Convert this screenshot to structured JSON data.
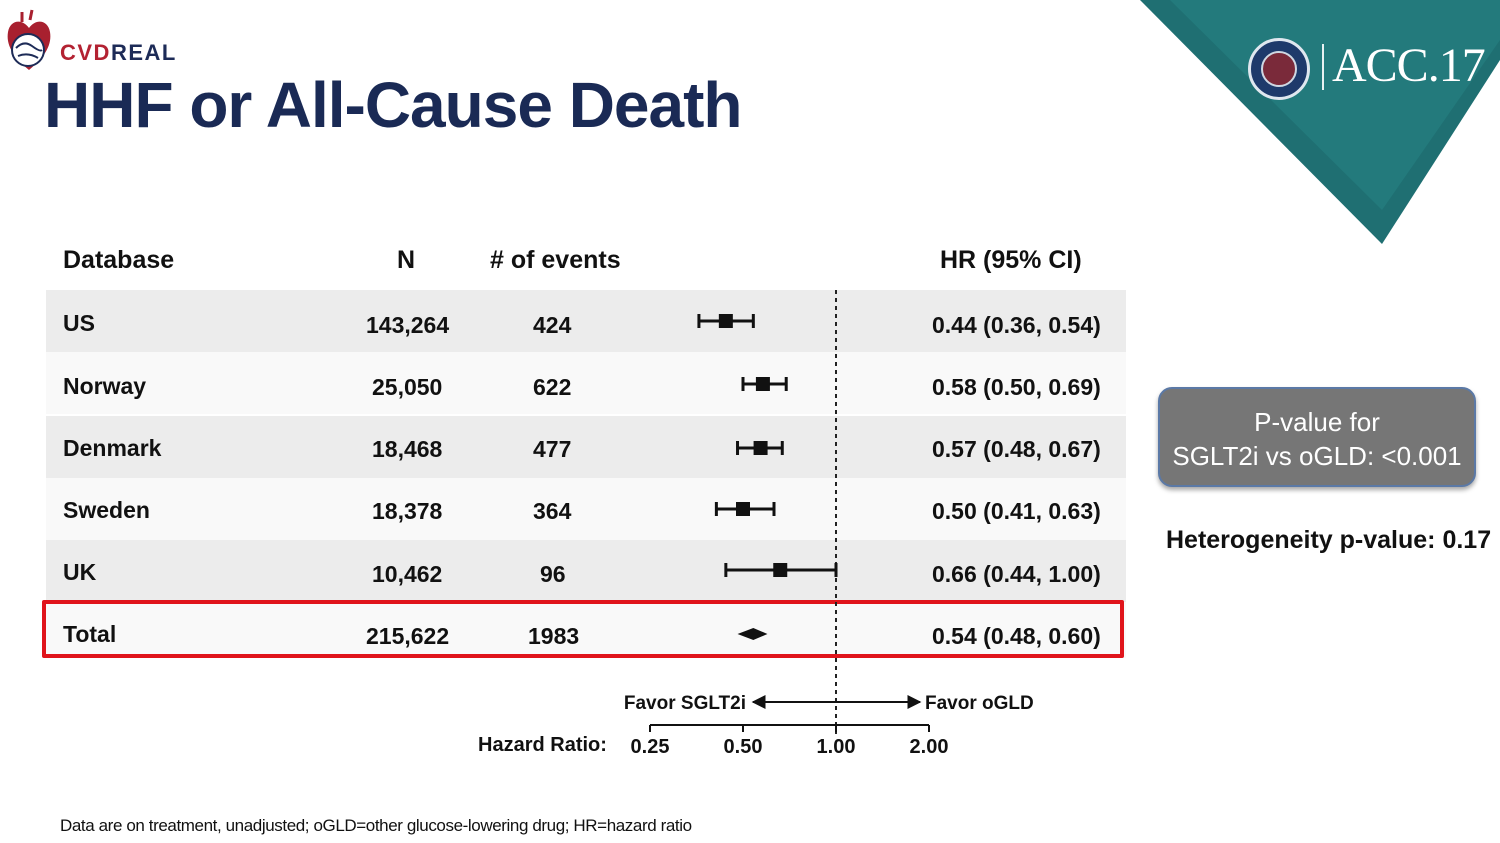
{
  "brand": {
    "text_red": "CVD",
    "text_dark": "REAL"
  },
  "conference": {
    "name": "ACC.17"
  },
  "title": "HHF or All-Cause Death",
  "table": {
    "headers": {
      "database": "Database",
      "n": "N",
      "events": "# of events",
      "hr": "HR (95% CI)"
    },
    "rows": [
      {
        "database": "US",
        "n": "143,264",
        "events": "424",
        "hr_text": "0.44 (0.36, 0.54)"
      },
      {
        "database": "Norway",
        "n": "25,050",
        "events": "622",
        "hr_text": "0.58 (0.50, 0.69)"
      },
      {
        "database": "Denmark",
        "n": "18,468",
        "events": "477",
        "hr_text": "0.57 (0.48, 0.67)"
      },
      {
        "database": "Sweden",
        "n": "18,378",
        "events": "364",
        "hr_text": "0.50 (0.41, 0.63)"
      },
      {
        "database": "UK",
        "n": "10,462",
        "events": "96",
        "hr_text": "0.66 (0.44, 1.00)"
      },
      {
        "database": "Total",
        "n": "215,622",
        "events": "1983",
        "hr_text": "0.54 (0.48, 0.60)"
      }
    ],
    "highlighted_row": "Total"
  },
  "chart_data": {
    "type": "forest",
    "x_scale": "log",
    "xlabel": "Hazard Ratio:",
    "xticks": [
      0.25,
      0.5,
      1.0,
      2.0
    ],
    "xtick_labels": [
      "0.25",
      "0.50",
      "1.00",
      "2.00"
    ],
    "reference_line": 1.0,
    "favor_left": "Favor SGLT2i",
    "favor_right": "Favor oGLD",
    "series": [
      {
        "name": "US",
        "hr": 0.44,
        "lower": 0.36,
        "upper": 0.54,
        "marker": "square"
      },
      {
        "name": "Norway",
        "hr": 0.58,
        "lower": 0.5,
        "upper": 0.69,
        "marker": "square"
      },
      {
        "name": "Denmark",
        "hr": 0.57,
        "lower": 0.48,
        "upper": 0.67,
        "marker": "square"
      },
      {
        "name": "Sweden",
        "hr": 0.5,
        "lower": 0.41,
        "upper": 0.63,
        "marker": "square"
      },
      {
        "name": "UK",
        "hr": 0.66,
        "lower": 0.44,
        "upper": 1.0,
        "marker": "square"
      },
      {
        "name": "Total",
        "hr": 0.54,
        "lower": 0.48,
        "upper": 0.6,
        "marker": "diamond"
      }
    ]
  },
  "pvalue_box": {
    "line1": "P-value for",
    "line2": "SGLT2i vs oGLD: <0.001"
  },
  "heterogeneity": "Heterogeneity p-value: 0.17",
  "footnote": "Data are on treatment, unadjusted; oGLD=other glucose-lowering drug; HR=hazard ratio",
  "colors": {
    "title": "#1a2a55",
    "banner": "#1f6f72",
    "highlight": "#e0141b",
    "band": "#efefef",
    "pbox": "#767676"
  }
}
